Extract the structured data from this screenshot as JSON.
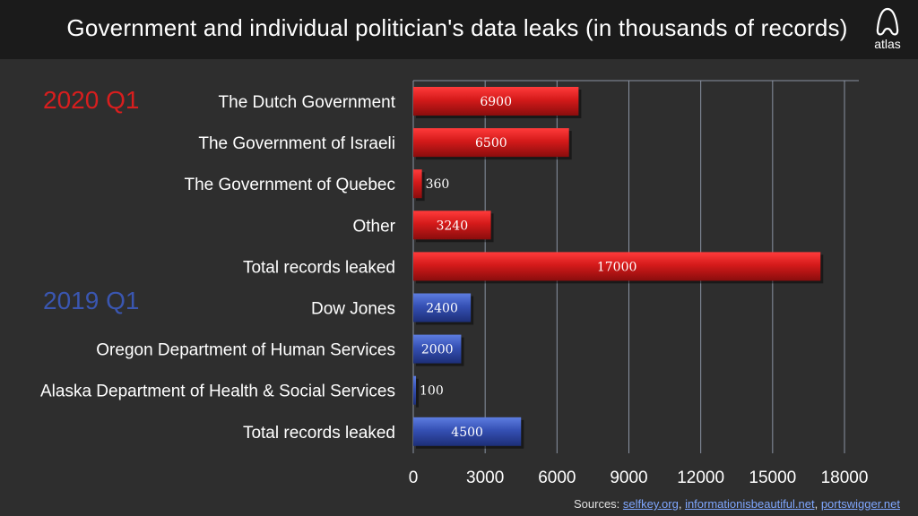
{
  "header": {
    "title": "Government and individual politician's data leaks (in thousands of records)",
    "logo_text": "atlas"
  },
  "groups": [
    {
      "label": "2020 Q1",
      "color": "#d81e1e"
    },
    {
      "label": "2019 Q1",
      "color": "#3a56b0"
    }
  ],
  "chart_data": {
    "type": "bar",
    "orientation": "horizontal",
    "title": "Government and individual politician's data leaks (in thousands of records)",
    "categories": [
      "The Dutch Government",
      "The Government of Israeli",
      "The Government of Quebec",
      "Other",
      "Total records leaked",
      "Dow Jones",
      "Oregon Department of Human Services",
      "Alaska Department of Health & Social Services",
      "Total records leaked"
    ],
    "values": [
      6900,
      6500,
      360,
      3240,
      17000,
      2400,
      2000,
      100,
      4500
    ],
    "group": [
      "2020 Q1",
      "2020 Q1",
      "2020 Q1",
      "2020 Q1",
      "2020 Q1",
      "2019 Q1",
      "2019 Q1",
      "2019 Q1",
      "2019 Q1"
    ],
    "xlim": [
      0,
      18000
    ],
    "xticks": [
      0,
      3000,
      6000,
      9000,
      12000,
      15000,
      18000
    ],
    "grid": true,
    "colors": {
      "2020 Q1": "#c8161c",
      "2019 Q1": "#2e4aa8"
    }
  },
  "sources": {
    "prefix": "Sources:",
    "links": [
      "selfkey.org",
      "informationisbeautiful.net",
      "portswigger.net"
    ]
  }
}
